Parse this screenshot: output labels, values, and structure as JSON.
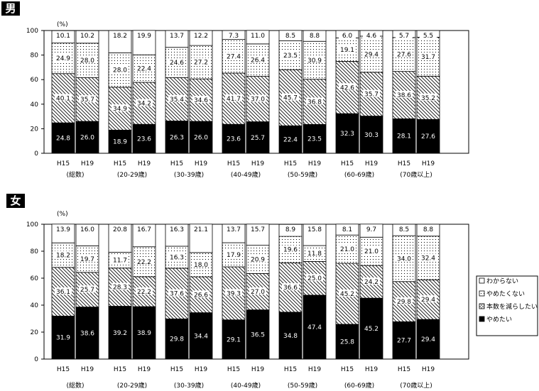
{
  "chart_data": [
    {
      "type": "bar",
      "stacked": true,
      "badge": "男",
      "unit": "(%)",
      "ylim": [
        0,
        100
      ],
      "yticks": [
        0,
        20,
        40,
        60,
        80,
        100
      ],
      "categories": [
        "(総数)",
        "(20-29歳)",
        "(30-39歳)",
        "(40-49歳)",
        "(50-59歳)",
        "(60-69歳)",
        "(70歳以上)"
      ],
      "years": [
        "H15",
        "H19"
      ],
      "series": [
        {
          "name": "やめたい",
          "values": [
            [
              24.8,
              26.0
            ],
            [
              18.9,
              23.6
            ],
            [
              26.3,
              26.0
            ],
            [
              23.6,
              25.7
            ],
            [
              22.4,
              23.5
            ],
            [
              32.3,
              30.3
            ],
            [
              28.1,
              27.6
            ]
          ]
        },
        {
          "name": "本数を減らしたい",
          "values": [
            [
              40.1,
              35.7
            ],
            [
              34.9,
              34.2
            ],
            [
              35.4,
              34.6
            ],
            [
              41.7,
              37.0
            ],
            [
              45.7,
              36.8
            ],
            [
              42.6,
              35.7
            ],
            [
              38.6,
              35.2
            ]
          ]
        },
        {
          "name": "やめたくない",
          "values": [
            [
              24.9,
              28.0
            ],
            [
              28.0,
              22.4
            ],
            [
              24.6,
              27.2
            ],
            [
              27.4,
              26.4
            ],
            [
              23.5,
              30.9
            ],
            [
              19.1,
              29.4
            ],
            [
              27.6,
              31.7
            ]
          ]
        },
        {
          "name": "わからない",
          "values": [
            [
              10.1,
              10.2
            ],
            [
              18.2,
              19.9
            ],
            [
              13.7,
              12.2
            ],
            [
              7.3,
              11.0
            ],
            [
              8.5,
              8.8
            ],
            [
              6.0,
              4.6
            ],
            [
              5.7,
              5.5
            ]
          ]
        }
      ]
    },
    {
      "type": "bar",
      "stacked": true,
      "badge": "女",
      "unit": "(%)",
      "ylim": [
        0,
        100
      ],
      "yticks": [
        0,
        20,
        40,
        60,
        80,
        100
      ],
      "categories": [
        "(総数)",
        "(20-29歳)",
        "(30-39歳)",
        "(40-49歳)",
        "(50-59歳)",
        "(60-69歳)",
        "(70歳以上)"
      ],
      "years": [
        "H15",
        "H19"
      ],
      "series": [
        {
          "name": "やめたい",
          "values": [
            [
              31.9,
              38.6
            ],
            [
              39.2,
              38.9
            ],
            [
              29.8,
              34.4
            ],
            [
              29.1,
              36.5
            ],
            [
              34.8,
              47.4
            ],
            [
              25.8,
              45.2
            ],
            [
              27.7,
              29.4
            ]
          ]
        },
        {
          "name": "本数を減らしたい",
          "values": [
            [
              36.1,
              25.7
            ],
            [
              28.3,
              22.2
            ],
            [
              37.6,
              26.6
            ],
            [
              39.3,
              27.0
            ],
            [
              36.6,
              25.0
            ],
            [
              45.2,
              24.2
            ],
            [
              29.8,
              29.4
            ]
          ]
        },
        {
          "name": "やめたくない",
          "values": [
            [
              18.2,
              19.7
            ],
            [
              11.7,
              22.2
            ],
            [
              16.3,
              18.0
            ],
            [
              17.9,
              20.9
            ],
            [
              19.6,
              11.8
            ],
            [
              21.0,
              21.0
            ],
            [
              34.0,
              32.4
            ]
          ]
        },
        {
          "name": "わからない",
          "values": [
            [
              13.9,
              16.0
            ],
            [
              20.8,
              16.7
            ],
            [
              16.3,
              21.1
            ],
            [
              13.7,
              15.7
            ],
            [
              8.9,
              15.8
            ],
            [
              8.1,
              9.7
            ],
            [
              8.5,
              8.8
            ]
          ]
        }
      ]
    }
  ],
  "legend": [
    "わからない",
    "やめたくない",
    "本数を減らしたい",
    "やめたい"
  ]
}
